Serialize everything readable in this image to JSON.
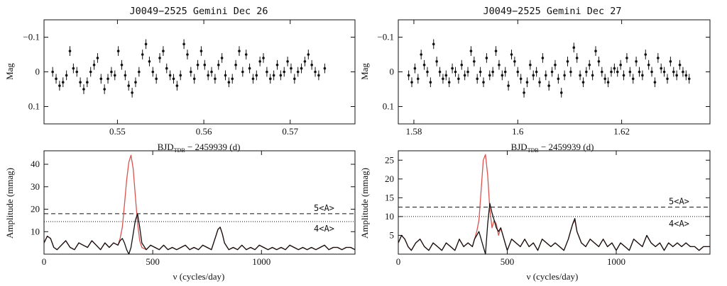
{
  "chart_data": [
    {
      "type": "scatter",
      "title": "J0049−2525 Gemini Dec 26",
      "ylabel": "Mag",
      "xlabel": {
        "main": "BJD",
        "sub": "TDB",
        "rest": " − 2459939 (d)"
      },
      "xlim": [
        0.5415,
        0.5775
      ],
      "ylim": [
        0.15,
        -0.15
      ],
      "xticks": [
        0.55,
        0.56,
        0.57
      ],
      "xtick_labels": [
        "0.55",
        "0.56",
        "0.57"
      ],
      "yticks": [
        -0.1,
        0,
        0.1
      ],
      "ytick_labels": [
        "−0.1",
        "0",
        "0.1"
      ],
      "error_bar": 0.014,
      "x": [
        0.5425,
        0.5429,
        0.5433,
        0.5437,
        0.5441,
        0.5445,
        0.5449,
        0.5453,
        0.5457,
        0.5461,
        0.5465,
        0.5469,
        0.5473,
        0.5477,
        0.5481,
        0.5485,
        0.5489,
        0.5493,
        0.5497,
        0.5501,
        0.5505,
        0.5509,
        0.5513,
        0.5517,
        0.5521,
        0.5525,
        0.5529,
        0.5533,
        0.5537,
        0.5541,
        0.5545,
        0.5549,
        0.5553,
        0.5557,
        0.5561,
        0.5565,
        0.5569,
        0.5573,
        0.5577,
        0.5581,
        0.5585,
        0.5589,
        0.5593,
        0.5597,
        0.5601,
        0.5605,
        0.5609,
        0.5613,
        0.5617,
        0.5621,
        0.5625,
        0.5629,
        0.5633,
        0.5637,
        0.5641,
        0.5645,
        0.5649,
        0.5653,
        0.5657,
        0.5661,
        0.5665,
        0.5669,
        0.5673,
        0.5677,
        0.5681,
        0.5685,
        0.5689,
        0.5693,
        0.5697,
        0.5701,
        0.5705,
        0.5709,
        0.5713,
        0.5717,
        0.5721,
        0.5725,
        0.5729,
        0.5733,
        0.574
      ],
      "y": [
        0.0,
        0.02,
        0.04,
        0.03,
        0.01,
        -0.06,
        -0.01,
        0.0,
        0.03,
        0.05,
        0.03,
        0.0,
        -0.02,
        -0.04,
        0.02,
        0.05,
        0.02,
        0.0,
        0.01,
        -0.06,
        -0.02,
        0.01,
        0.04,
        0.06,
        0.03,
        0.0,
        -0.05,
        -0.08,
        -0.03,
        0.0,
        0.02,
        -0.04,
        -0.06,
        -0.01,
        0.01,
        0.02,
        0.04,
        0.01,
        -0.08,
        -0.05,
        0.0,
        0.02,
        -0.02,
        -0.06,
        -0.02,
        0.01,
        0.0,
        0.02,
        -0.02,
        -0.04,
        0.01,
        0.03,
        0.02,
        -0.02,
        -0.06,
        0.0,
        -0.05,
        -0.01,
        0.02,
        0.01,
        -0.03,
        -0.04,
        0.0,
        0.02,
        0.01,
        -0.02,
        0.01,
        0.0,
        -0.03,
        -0.01,
        0.02,
        0.0,
        -0.01,
        -0.03,
        -0.05,
        -0.02,
        0.0,
        0.01,
        -0.01
      ]
    },
    {
      "type": "scatter",
      "title": "J0049−2525 Gemini Dec 27",
      "ylabel": "Mag",
      "xlabel": {
        "main": "BJD",
        "sub": "TDB",
        "rest": " − 2459939 (d)"
      },
      "xlim": [
        1.577,
        1.637
      ],
      "ylim": [
        0.15,
        -0.15
      ],
      "xticks": [
        1.58,
        1.6,
        1.62
      ],
      "xtick_labels": [
        "1.58",
        "1.6",
        "1.62"
      ],
      "yticks": [
        -0.1,
        0,
        0.1
      ],
      "ytick_labels": [
        "−0.1",
        "0",
        "0.1"
      ],
      "error_bar": 0.014,
      "x": [
        1.579,
        1.5796,
        1.5802,
        1.5808,
        1.5814,
        1.582,
        1.5826,
        1.5832,
        1.5838,
        1.5844,
        1.585,
        1.5856,
        1.5862,
        1.5868,
        1.5874,
        1.588,
        1.5886,
        1.5892,
        1.5898,
        1.5904,
        1.591,
        1.5916,
        1.5922,
        1.5928,
        1.5934,
        1.594,
        1.5946,
        1.5952,
        1.5958,
        1.5964,
        1.597,
        1.5976,
        1.5982,
        1.5988,
        1.5994,
        1.6,
        1.6006,
        1.6012,
        1.6018,
        1.6024,
        1.603,
        1.6036,
        1.6042,
        1.6048,
        1.6054,
        1.606,
        1.6066,
        1.6072,
        1.6078,
        1.6084,
        1.609,
        1.6096,
        1.6102,
        1.6108,
        1.6114,
        1.612,
        1.6126,
        1.6132,
        1.6138,
        1.6144,
        1.615,
        1.6156,
        1.6162,
        1.6168,
        1.6174,
        1.618,
        1.6186,
        1.6192,
        1.6198,
        1.6204,
        1.621,
        1.6216,
        1.6222,
        1.6228,
        1.6234,
        1.624,
        1.6246,
        1.6252,
        1.6258,
        1.6264,
        1.627,
        1.6276,
        1.6282,
        1.6288,
        1.6294,
        1.63,
        1.6306,
        1.6312,
        1.6318,
        1.6324,
        1.633
      ],
      "y": [
        0.01,
        0.03,
        -0.01,
        0.02,
        -0.05,
        -0.02,
        0.0,
        0.03,
        -0.08,
        -0.03,
        0.0,
        0.02,
        0.01,
        0.03,
        -0.01,
        0.0,
        0.02,
        -0.02,
        0.01,
        0.0,
        -0.06,
        -0.03,
        0.02,
        0.0,
        0.03,
        -0.04,
        0.01,
        0.0,
        -0.06,
        -0.02,
        0.01,
        0.0,
        0.04,
        -0.05,
        -0.03,
        0.0,
        0.02,
        0.06,
        0.03,
        -0.02,
        0.01,
        0.0,
        0.03,
        -0.04,
        0.01,
        0.04,
        0.0,
        -0.02,
        0.02,
        0.06,
        0.01,
        -0.03,
        0.0,
        -0.07,
        -0.04,
        0.01,
        0.03,
        0.0,
        -0.02,
        0.01,
        -0.06,
        -0.03,
        0.0,
        0.02,
        0.03,
        0.0,
        -0.01,
        0.0,
        -0.02,
        0.01,
        -0.04,
        0.0,
        0.02,
        -0.03,
        0.0,
        0.01,
        -0.05,
        -0.02,
        0.0,
        0.03,
        -0.04,
        -0.01,
        0.0,
        0.02,
        -0.03,
        0.0,
        0.01,
        -0.02,
        0.0,
        0.01,
        0.02
      ]
    },
    {
      "type": "line",
      "xlabel": "ν (cycles/day)",
      "ylabel": "Amplitude (mmag)",
      "xlim": [
        0,
        1430
      ],
      "ylim": [
        0,
        46
      ],
      "xticks": [
        0,
        500,
        1000
      ],
      "xtick_labels": [
        "0",
        "500",
        "1000"
      ],
      "yticks": [
        10,
        20,
        30,
        40
      ],
      "ytick_labels": [
        "10",
        "20",
        "30",
        "40"
      ],
      "threshold_5A": 18,
      "threshold_4A": 14.5,
      "label_5A": "5<A>",
      "label_4A": "4<A>",
      "series": [
        {
          "color": "#d9534f",
          "x": [
            0,
            15,
            30,
            45,
            60,
            80,
            100,
            120,
            140,
            160,
            180,
            200,
            220,
            240,
            260,
            280,
            300,
            320,
            340,
            350,
            360,
            370,
            380,
            390,
            400,
            410,
            420,
            430,
            440,
            450,
            470,
            490,
            510,
            530,
            550,
            570,
            590,
            610,
            630,
            650,
            670,
            690,
            710,
            730,
            750,
            770,
            780,
            790,
            800,
            810,
            820,
            830,
            850,
            870,
            890,
            910,
            930,
            950,
            970,
            990,
            1010,
            1030,
            1050,
            1070,
            1090,
            1110,
            1130,
            1150,
            1170,
            1190,
            1210,
            1230,
            1250,
            1270,
            1290,
            1310,
            1330,
            1350,
            1370,
            1390,
            1410,
            1430
          ],
          "y": [
            5,
            8,
            7,
            3,
            2,
            4,
            6,
            3,
            2,
            5,
            4,
            3,
            6,
            4,
            2,
            5,
            3,
            5,
            4,
            7,
            12,
            22,
            33,
            41,
            44,
            38,
            26,
            14,
            6,
            3,
            2,
            4,
            3,
            2,
            4,
            2,
            3,
            2,
            3,
            4,
            2,
            3,
            2,
            4,
            3,
            2,
            5,
            8,
            11,
            12,
            9,
            5,
            2,
            3,
            2,
            4,
            2,
            3,
            2,
            4,
            3,
            2,
            3,
            2,
            3,
            2,
            4,
            3,
            2,
            3,
            2,
            3,
            2,
            3,
            4,
            2,
            3,
            3,
            2,
            3,
            3,
            2
          ]
        },
        {
          "color": "#111111",
          "x": [
            0,
            15,
            30,
            45,
            60,
            80,
            100,
            120,
            140,
            160,
            180,
            200,
            220,
            240,
            260,
            280,
            300,
            320,
            340,
            350,
            360,
            370,
            380,
            390,
            400,
            410,
            420,
            430,
            440,
            450,
            470,
            490,
            510,
            530,
            550,
            570,
            590,
            610,
            630,
            650,
            670,
            690,
            710,
            730,
            750,
            770,
            780,
            790,
            800,
            810,
            820,
            830,
            850,
            870,
            890,
            910,
            930,
            950,
            970,
            990,
            1010,
            1030,
            1050,
            1070,
            1090,
            1110,
            1130,
            1150,
            1170,
            1190,
            1210,
            1230,
            1250,
            1270,
            1290,
            1310,
            1330,
            1350,
            1370,
            1390,
            1410,
            1430
          ],
          "y": [
            5,
            8,
            7,
            3,
            2,
            4,
            6,
            3,
            2,
            5,
            4,
            3,
            6,
            4,
            2,
            5,
            3,
            5,
            4,
            6,
            7,
            5,
            2,
            0,
            3,
            9,
            15,
            18,
            12,
            5,
            2,
            4,
            3,
            2,
            4,
            2,
            3,
            2,
            3,
            4,
            2,
            3,
            2,
            4,
            3,
            2,
            5,
            8,
            11,
            12,
            9,
            5,
            2,
            3,
            2,
            4,
            2,
            3,
            2,
            4,
            3,
            2,
            3,
            2,
            3,
            2,
            4,
            3,
            2,
            3,
            2,
            3,
            2,
            3,
            4,
            2,
            3,
            3,
            2,
            3,
            3,
            2
          ]
        }
      ]
    },
    {
      "type": "line",
      "xlabel": "ν (cycles/day)",
      "ylabel": "Amplitude (mmag)",
      "xlim": [
        0,
        1430
      ],
      "ylim": [
        0,
        27.5
      ],
      "xticks": [
        0,
        500,
        1000
      ],
      "xtick_labels": [
        "0",
        "500",
        "1000"
      ],
      "yticks": [
        5,
        10,
        15,
        20,
        25
      ],
      "ytick_labels": [
        "5",
        "10",
        "15",
        "20",
        "25"
      ],
      "threshold_5A": 12.5,
      "threshold_4A": 10,
      "label_5A": "5<A>",
      "label_4A": "4<A>",
      "series": [
        {
          "color": "#d9534f",
          "x": [
            0,
            15,
            30,
            45,
            60,
            80,
            100,
            120,
            140,
            160,
            180,
            200,
            220,
            240,
            260,
            280,
            300,
            320,
            340,
            350,
            360,
            370,
            380,
            390,
            400,
            410,
            420,
            430,
            440,
            450,
            460,
            470,
            480,
            490,
            500,
            520,
            540,
            560,
            580,
            600,
            620,
            640,
            660,
            680,
            700,
            720,
            740,
            760,
            780,
            790,
            800,
            810,
            820,
            840,
            860,
            880,
            900,
            920,
            940,
            960,
            980,
            1000,
            1020,
            1040,
            1060,
            1080,
            1100,
            1120,
            1140,
            1160,
            1180,
            1200,
            1220,
            1240,
            1260,
            1280,
            1300,
            1320,
            1340,
            1360,
            1380,
            1400,
            1430
          ],
          "y": [
            3,
            5,
            4,
            2,
            1,
            3,
            4,
            2,
            1,
            3,
            2,
            1,
            3,
            2,
            1,
            4,
            2,
            3,
            2,
            4,
            6,
            9,
            17,
            25,
            26.5,
            21,
            12,
            7,
            9,
            8,
            5,
            7,
            5,
            3,
            1,
            4,
            3,
            2,
            4,
            2,
            3,
            1,
            4,
            3,
            2,
            3,
            2,
            1,
            4,
            6,
            8,
            9,
            6,
            3,
            2,
            4,
            3,
            2,
            4,
            2,
            3,
            1,
            3,
            2,
            1,
            4,
            3,
            2,
            5,
            3,
            2,
            3,
            1,
            3,
            2,
            3,
            2,
            3,
            2,
            2,
            1,
            2,
            2
          ]
        },
        {
          "color": "#111111",
          "x": [
            0,
            15,
            30,
            45,
            60,
            80,
            100,
            120,
            140,
            160,
            180,
            200,
            220,
            240,
            260,
            280,
            300,
            320,
            340,
            350,
            360,
            370,
            380,
            390,
            400,
            410,
            420,
            430,
            440,
            450,
            460,
            470,
            480,
            490,
            500,
            520,
            540,
            560,
            580,
            600,
            620,
            640,
            660,
            680,
            700,
            720,
            740,
            760,
            780,
            790,
            800,
            810,
            820,
            840,
            860,
            880,
            900,
            920,
            940,
            960,
            980,
            1000,
            1020,
            1040,
            1060,
            1080,
            1100,
            1120,
            1140,
            1160,
            1180,
            1200,
            1220,
            1240,
            1260,
            1280,
            1300,
            1320,
            1340,
            1360,
            1380,
            1400,
            1430
          ],
          "y": [
            3,
            5,
            4,
            2,
            1,
            3,
            4,
            2,
            1,
            3,
            2,
            1,
            3,
            2,
            1,
            4,
            2,
            3,
            2,
            4,
            5,
            6,
            4,
            2,
            0,
            8,
            13.5,
            11,
            9,
            7,
            6,
            7,
            5,
            3,
            1,
            4,
            3,
            2,
            4,
            2,
            3,
            1,
            4,
            3,
            2,
            3,
            2,
            1,
            4,
            6,
            8,
            9.5,
            6,
            3,
            2,
            4,
            3,
            2,
            4,
            2,
            3,
            1,
            3,
            2,
            1,
            4,
            3,
            2,
            5,
            3,
            2,
            3,
            1,
            3,
            2,
            3,
            2,
            3,
            2,
            2,
            1,
            2,
            2
          ]
        }
      ]
    }
  ]
}
